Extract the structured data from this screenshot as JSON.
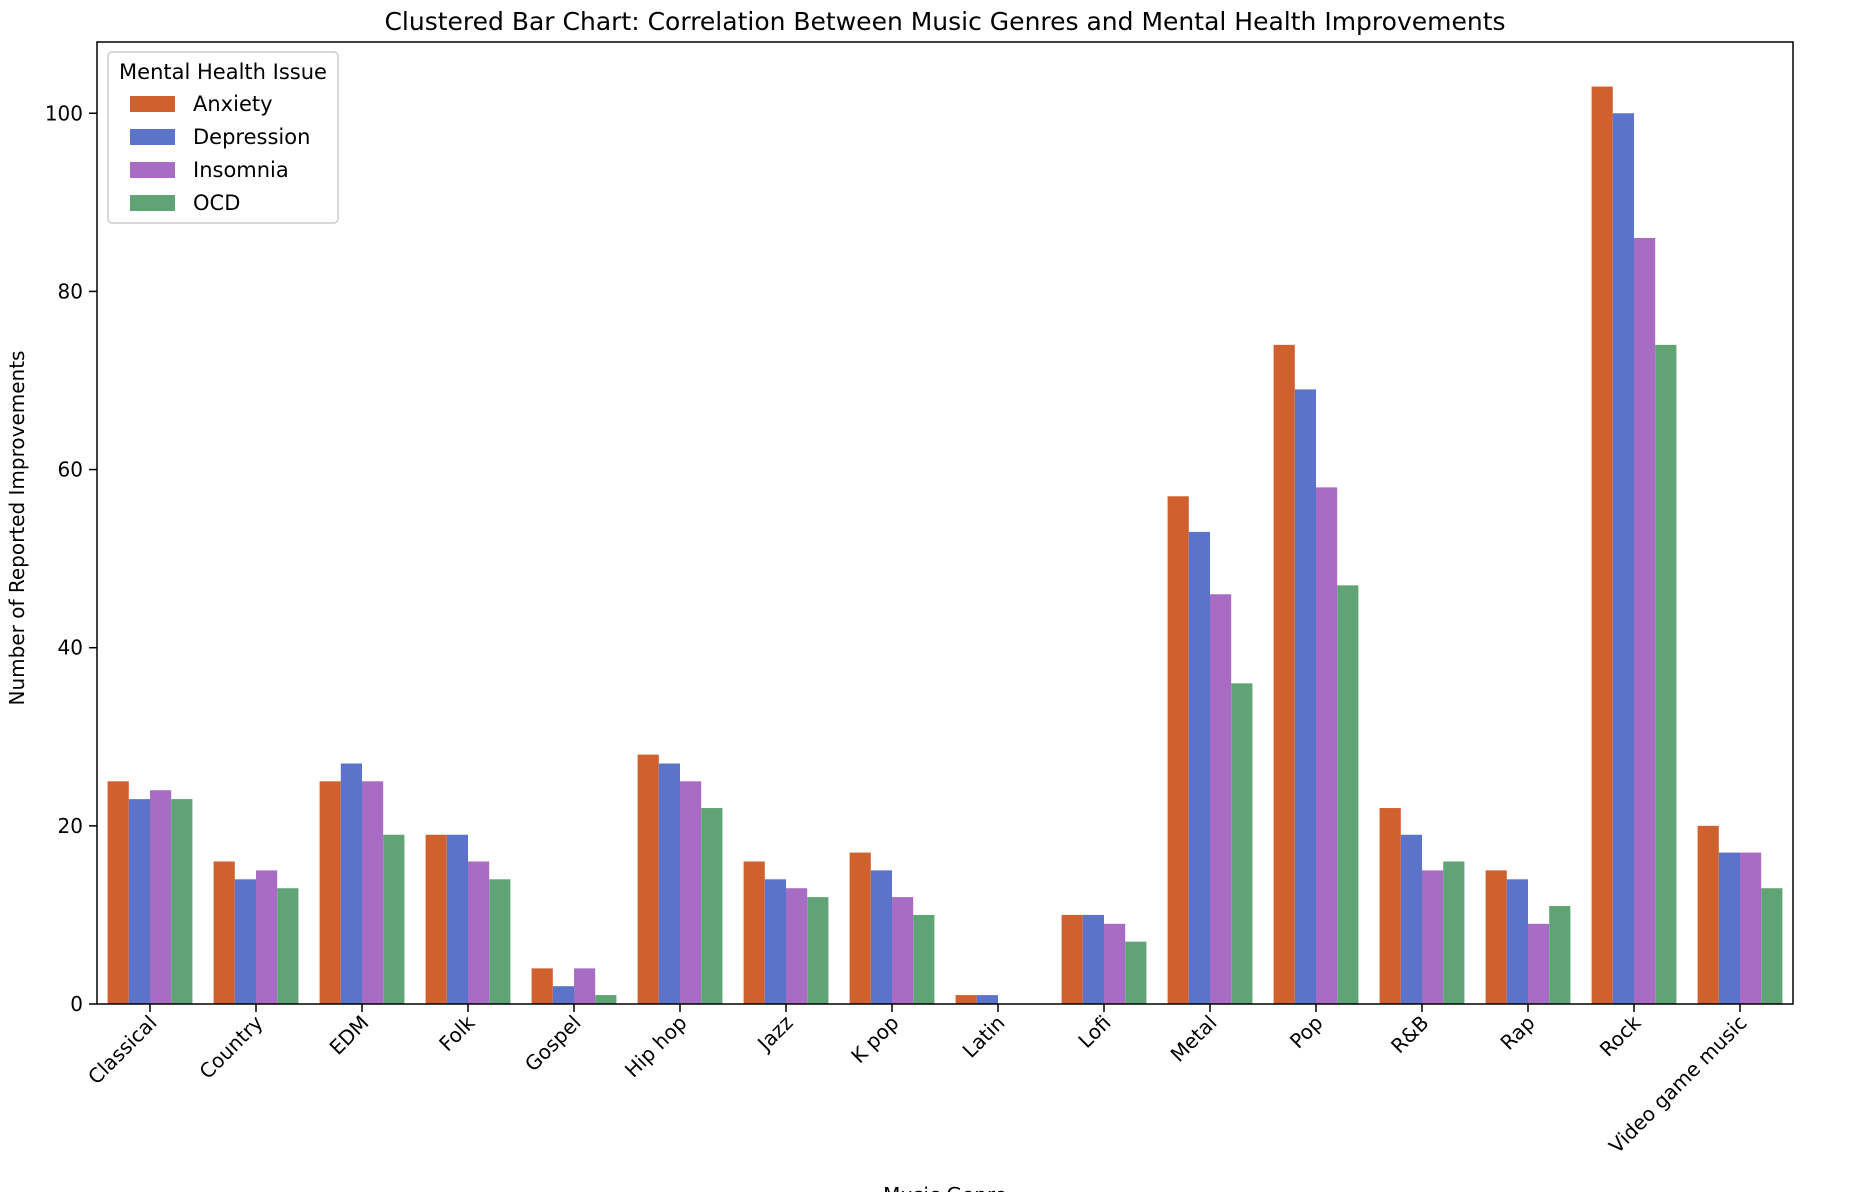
{
  "chart_data": {
    "type": "bar",
    "title": "Clustered Bar Chart: Correlation Between Music Genres and Mental Health Improvements",
    "xlabel": "Music Genre",
    "ylabel": "Number of Reported Improvements",
    "ylim": [
      0,
      108
    ],
    "yticks": [
      0,
      20,
      40,
      60,
      80,
      100
    ],
    "grid": false,
    "legend": {
      "title": "Mental Health Issue",
      "position": "top-left"
    },
    "categories": [
      "Classical",
      "Country",
      "EDM",
      "Folk",
      "Gospel",
      "Hip hop",
      "Jazz",
      "K pop",
      "Latin",
      "Lofi",
      "Metal",
      "Pop",
      "R&B",
      "Rap",
      "Rock",
      "Video game music"
    ],
    "series": [
      {
        "name": "Anxiety",
        "color": "#d1602f",
        "values": [
          25,
          16,
          25,
          19,
          4,
          28,
          16,
          17,
          1,
          10,
          57,
          74,
          22,
          15,
          103,
          20
        ]
      },
      {
        "name": "Depression",
        "color": "#5b74c9",
        "values": [
          23,
          14,
          27,
          19,
          2,
          27,
          14,
          15,
          1,
          10,
          53,
          69,
          19,
          14,
          100,
          17
        ]
      },
      {
        "name": "Insomnia",
        "color": "#a96cc4",
        "values": [
          24,
          15,
          25,
          16,
          4,
          25,
          13,
          12,
          0,
          9,
          46,
          58,
          15,
          9,
          86,
          17
        ]
      },
      {
        "name": "OCD",
        "color": "#60a475",
        "values": [
          23,
          13,
          19,
          14,
          1,
          22,
          12,
          10,
          0,
          7,
          36,
          47,
          16,
          11,
          74,
          13
        ]
      }
    ]
  }
}
